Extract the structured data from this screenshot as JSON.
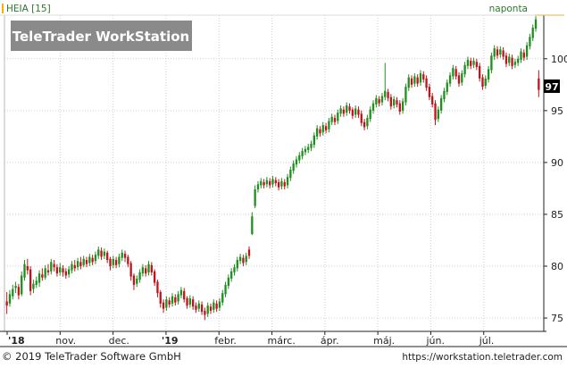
{
  "header": {
    "symbol_label": "HEIA [15]",
    "period_label": "naponta",
    "watermark": "TeleTrader WorkStation"
  },
  "footer": {
    "copyright": "© 2019 TeleTrader Software GmbH",
    "url": "https://workstation.teletrader.com"
  },
  "colors": {
    "up": "#1f8f1f",
    "down": "#c0141c",
    "grid": "#cfcfcf",
    "axis_text": "#222222",
    "label_green": "#2a7a2a",
    "last_price_box": "#000000",
    "watermark_bg": "#8a8a8a"
  },
  "chart_data": {
    "type": "candlestick",
    "title": "HEIA [15]",
    "period": "naponta",
    "x_tick_labels": [
      "'18",
      "nov.",
      "dec.",
      "'19",
      "febr.",
      "márc.",
      "ápr.",
      "máj.",
      "jún.",
      "júl."
    ],
    "y_ticks": [
      75,
      80,
      85,
      90,
      95,
      100
    ],
    "ylim": [
      73.8,
      104.2
    ],
    "last_price_label": "97",
    "grid": true,
    "candles": [
      {
        "o": 76.6,
        "c": 76.2,
        "h": 77.5,
        "l": 75.4
      },
      {
        "o": 76.4,
        "c": 77.3,
        "h": 77.7,
        "l": 76.1
      },
      {
        "o": 77.1,
        "c": 77.8,
        "h": 78.2,
        "l": 76.8
      },
      {
        "o": 77.9,
        "c": 78.1,
        "h": 78.5,
        "l": 77.4
      },
      {
        "o": 78.0,
        "c": 77.2,
        "h": 78.3,
        "l": 76.8
      },
      {
        "o": 77.3,
        "c": 79.1,
        "h": 79.5,
        "l": 77.1
      },
      {
        "o": 78.9,
        "c": 80.2,
        "h": 80.6,
        "l": 78.6
      },
      {
        "o": 80.0,
        "c": 79.6,
        "h": 80.7,
        "l": 79.2
      },
      {
        "o": 79.7,
        "c": 77.6,
        "h": 80.0,
        "l": 77.2
      },
      {
        "o": 77.8,
        "c": 78.3,
        "h": 78.7,
        "l": 77.4
      },
      {
        "o": 78.2,
        "c": 78.6,
        "h": 79.0,
        "l": 77.9
      },
      {
        "o": 78.4,
        "c": 79.3,
        "h": 79.6,
        "l": 78.0
      },
      {
        "o": 79.2,
        "c": 78.9,
        "h": 79.8,
        "l": 78.6
      },
      {
        "o": 78.9,
        "c": 79.8,
        "h": 80.1,
        "l": 78.7
      },
      {
        "o": 79.6,
        "c": 79.4,
        "h": 80.2,
        "l": 79.1
      },
      {
        "o": 79.5,
        "c": 80.4,
        "h": 80.7,
        "l": 79.2
      },
      {
        "o": 80.2,
        "c": 79.9,
        "h": 80.6,
        "l": 79.5
      },
      {
        "o": 79.9,
        "c": 79.3,
        "h": 80.2,
        "l": 79.0
      },
      {
        "o": 79.4,
        "c": 79.9,
        "h": 80.3,
        "l": 79.1
      },
      {
        "o": 79.8,
        "c": 79.4,
        "h": 80.1,
        "l": 79.0
      },
      {
        "o": 79.5,
        "c": 79.1,
        "h": 79.8,
        "l": 78.8
      },
      {
        "o": 79.2,
        "c": 79.7,
        "h": 80.0,
        "l": 78.9
      },
      {
        "o": 79.6,
        "c": 80.2,
        "h": 80.5,
        "l": 79.3
      },
      {
        "o": 80.1,
        "c": 79.8,
        "h": 80.6,
        "l": 79.5
      },
      {
        "o": 79.9,
        "c": 80.5,
        "h": 80.8,
        "l": 79.6
      },
      {
        "o": 80.4,
        "c": 80.0,
        "h": 80.9,
        "l": 79.7
      },
      {
        "o": 80.1,
        "c": 80.7,
        "h": 81.0,
        "l": 79.9
      },
      {
        "o": 80.6,
        "c": 80.2,
        "h": 80.9,
        "l": 79.9
      },
      {
        "o": 80.3,
        "c": 80.9,
        "h": 81.2,
        "l": 80.0
      },
      {
        "o": 80.8,
        "c": 80.4,
        "h": 81.1,
        "l": 80.1
      },
      {
        "o": 80.5,
        "c": 81.1,
        "h": 81.4,
        "l": 80.2
      },
      {
        "o": 81.0,
        "c": 81.6,
        "h": 81.9,
        "l": 80.7
      },
      {
        "o": 81.5,
        "c": 80.9,
        "h": 81.8,
        "l": 80.6
      },
      {
        "o": 81.0,
        "c": 81.4,
        "h": 81.7,
        "l": 80.7
      },
      {
        "o": 81.3,
        "c": 80.6,
        "h": 81.5,
        "l": 80.3
      },
      {
        "o": 80.7,
        "c": 80.0,
        "h": 80.9,
        "l": 79.6
      },
      {
        "o": 80.1,
        "c": 80.7,
        "h": 81.0,
        "l": 79.8
      },
      {
        "o": 80.6,
        "c": 80.1,
        "h": 80.9,
        "l": 79.8
      },
      {
        "o": 80.2,
        "c": 80.9,
        "h": 81.2,
        "l": 79.9
      },
      {
        "o": 80.8,
        "c": 81.3,
        "h": 81.6,
        "l": 80.5
      },
      {
        "o": 81.2,
        "c": 80.8,
        "h": 81.5,
        "l": 80.4
      },
      {
        "o": 80.9,
        "c": 80.2,
        "h": 81.1,
        "l": 79.9
      },
      {
        "o": 80.3,
        "c": 79.0,
        "h": 80.5,
        "l": 78.6
      },
      {
        "o": 79.1,
        "c": 78.2,
        "h": 79.3,
        "l": 77.7
      },
      {
        "o": 78.3,
        "c": 78.8,
        "h": 79.1,
        "l": 78.0
      },
      {
        "o": 78.7,
        "c": 79.4,
        "h": 79.7,
        "l": 78.4
      },
      {
        "o": 79.3,
        "c": 79.9,
        "h": 80.2,
        "l": 79.0
      },
      {
        "o": 79.8,
        "c": 79.3,
        "h": 80.1,
        "l": 79.0
      },
      {
        "o": 79.4,
        "c": 80.2,
        "h": 80.5,
        "l": 79.1
      },
      {
        "o": 80.1,
        "c": 79.4,
        "h": 80.4,
        "l": 79.1
      },
      {
        "o": 79.5,
        "c": 78.4,
        "h": 79.7,
        "l": 78.1
      },
      {
        "o": 78.5,
        "c": 77.4,
        "h": 78.7,
        "l": 77.0
      },
      {
        "o": 77.5,
        "c": 76.4,
        "h": 77.7,
        "l": 76.0
      },
      {
        "o": 76.5,
        "c": 75.9,
        "h": 76.8,
        "l": 75.5
      },
      {
        "o": 76.0,
        "c": 76.8,
        "h": 77.1,
        "l": 75.7
      },
      {
        "o": 76.7,
        "c": 76.3,
        "h": 77.0,
        "l": 76.0
      },
      {
        "o": 76.4,
        "c": 77.1,
        "h": 77.4,
        "l": 76.1
      },
      {
        "o": 77.0,
        "c": 76.5,
        "h": 77.3,
        "l": 76.2
      },
      {
        "o": 76.6,
        "c": 77.3,
        "h": 77.6,
        "l": 76.3
      },
      {
        "o": 77.2,
        "c": 77.7,
        "h": 78.0,
        "l": 76.9
      },
      {
        "o": 77.6,
        "c": 76.8,
        "h": 77.9,
        "l": 76.5
      },
      {
        "o": 76.9,
        "c": 76.2,
        "h": 77.1,
        "l": 75.9
      },
      {
        "o": 76.3,
        "c": 76.9,
        "h": 77.2,
        "l": 76.0
      },
      {
        "o": 76.8,
        "c": 76.1,
        "h": 77.1,
        "l": 75.8
      },
      {
        "o": 76.2,
        "c": 75.8,
        "h": 76.5,
        "l": 75.5
      },
      {
        "o": 75.9,
        "c": 76.4,
        "h": 76.7,
        "l": 75.6
      },
      {
        "o": 76.3,
        "c": 75.6,
        "h": 76.6,
        "l": 75.3
      },
      {
        "o": 75.7,
        "c": 75.3,
        "h": 76.0,
        "l": 74.8
      },
      {
        "o": 75.4,
        "c": 76.2,
        "h": 76.5,
        "l": 75.1
      },
      {
        "o": 76.1,
        "c": 75.7,
        "h": 76.4,
        "l": 75.4
      },
      {
        "o": 75.8,
        "c": 76.5,
        "h": 76.8,
        "l": 75.5
      },
      {
        "o": 76.4,
        "c": 75.9,
        "h": 76.7,
        "l": 75.6
      },
      {
        "o": 76.0,
        "c": 76.6,
        "h": 76.9,
        "l": 75.7
      },
      {
        "o": 76.5,
        "c": 77.4,
        "h": 77.7,
        "l": 76.2
      },
      {
        "o": 77.3,
        "c": 78.2,
        "h": 78.5,
        "l": 77.0
      },
      {
        "o": 78.1,
        "c": 78.9,
        "h": 79.2,
        "l": 77.8
      },
      {
        "o": 78.8,
        "c": 79.5,
        "h": 79.8,
        "l": 78.5
      },
      {
        "o": 79.4,
        "c": 79.9,
        "h": 80.2,
        "l": 79.1
      },
      {
        "o": 79.8,
        "c": 80.6,
        "h": 80.9,
        "l": 79.5
      },
      {
        "o": 80.5,
        "c": 80.9,
        "h": 81.2,
        "l": 80.2
      },
      {
        "o": 80.8,
        "c": 80.3,
        "h": 81.1,
        "l": 80.0
      },
      {
        "o": 80.4,
        "c": 81.0,
        "h": 81.3,
        "l": 80.1
      },
      {
        "o": 81.6,
        "c": 81.0,
        "h": 81.9,
        "l": 80.7
      },
      {
        "o": 83.1,
        "c": 84.8,
        "h": 85.2,
        "l": 83.0
      },
      {
        "o": 85.8,
        "c": 87.4,
        "h": 87.8,
        "l": 85.6
      },
      {
        "o": 87.4,
        "c": 87.9,
        "h": 88.2,
        "l": 87.1
      },
      {
        "o": 87.8,
        "c": 88.2,
        "h": 88.5,
        "l": 87.5
      },
      {
        "o": 88.1,
        "c": 87.8,
        "h": 88.4,
        "l": 87.5
      },
      {
        "o": 87.9,
        "c": 88.3,
        "h": 88.6,
        "l": 87.6
      },
      {
        "o": 88.2,
        "c": 87.8,
        "h": 88.5,
        "l": 87.5
      },
      {
        "o": 87.9,
        "c": 88.4,
        "h": 88.7,
        "l": 87.6
      },
      {
        "o": 88.3,
        "c": 88.0,
        "h": 88.6,
        "l": 87.7
      },
      {
        "o": 88.1,
        "c": 87.6,
        "h": 88.4,
        "l": 87.3
      },
      {
        "o": 87.7,
        "c": 88.2,
        "h": 88.5,
        "l": 87.4
      },
      {
        "o": 88.1,
        "c": 87.7,
        "h": 88.4,
        "l": 87.4
      },
      {
        "o": 87.8,
        "c": 88.6,
        "h": 88.9,
        "l": 87.5
      },
      {
        "o": 88.5,
        "c": 89.3,
        "h": 89.6,
        "l": 88.2
      },
      {
        "o": 89.2,
        "c": 89.9,
        "h": 90.2,
        "l": 88.9
      },
      {
        "o": 89.8,
        "c": 90.3,
        "h": 90.6,
        "l": 89.5
      },
      {
        "o": 90.2,
        "c": 90.7,
        "h": 91.0,
        "l": 89.9
      },
      {
        "o": 90.6,
        "c": 91.1,
        "h": 91.4,
        "l": 90.3
      },
      {
        "o": 91.0,
        "c": 91.3,
        "h": 91.6,
        "l": 90.7
      },
      {
        "o": 91.2,
        "c": 91.5,
        "h": 91.8,
        "l": 90.9
      },
      {
        "o": 91.4,
        "c": 91.8,
        "h": 92.1,
        "l": 91.1
      },
      {
        "o": 91.7,
        "c": 92.6,
        "h": 92.9,
        "l": 91.4
      },
      {
        "o": 92.5,
        "c": 93.3,
        "h": 93.6,
        "l": 92.2
      },
      {
        "o": 93.2,
        "c": 92.8,
        "h": 93.5,
        "l": 92.5
      },
      {
        "o": 92.9,
        "c": 93.6,
        "h": 93.9,
        "l": 92.6
      },
      {
        "o": 93.5,
        "c": 93.1,
        "h": 93.8,
        "l": 92.8
      },
      {
        "o": 93.2,
        "c": 94.0,
        "h": 94.3,
        "l": 92.9
      },
      {
        "o": 93.9,
        "c": 94.4,
        "h": 94.7,
        "l": 93.6
      },
      {
        "o": 94.3,
        "c": 93.9,
        "h": 94.6,
        "l": 93.6
      },
      {
        "o": 94.0,
        "c": 94.8,
        "h": 95.1,
        "l": 93.7
      },
      {
        "o": 94.7,
        "c": 95.2,
        "h": 95.5,
        "l": 94.4
      },
      {
        "o": 95.1,
        "c": 94.7,
        "h": 95.4,
        "l": 94.4
      },
      {
        "o": 94.8,
        "c": 95.5,
        "h": 95.8,
        "l": 94.5
      },
      {
        "o": 95.4,
        "c": 95.0,
        "h": 95.7,
        "l": 94.7
      },
      {
        "o": 95.1,
        "c": 94.5,
        "h": 95.3,
        "l": 94.2
      },
      {
        "o": 94.6,
        "c": 95.2,
        "h": 95.5,
        "l": 94.3
      },
      {
        "o": 95.1,
        "c": 94.6,
        "h": 95.4,
        "l": 94.3
      },
      {
        "o": 94.7,
        "c": 93.8,
        "h": 95.0,
        "l": 93.5
      },
      {
        "o": 93.9,
        "c": 93.4,
        "h": 94.2,
        "l": 93.1
      },
      {
        "o": 93.5,
        "c": 94.3,
        "h": 94.6,
        "l": 93.2
      },
      {
        "o": 94.2,
        "c": 95.1,
        "h": 95.4,
        "l": 93.9
      },
      {
        "o": 95.0,
        "c": 95.7,
        "h": 96.0,
        "l": 94.7
      },
      {
        "o": 95.6,
        "c": 96.2,
        "h": 96.5,
        "l": 95.3
      },
      {
        "o": 96.1,
        "c": 95.7,
        "h": 96.4,
        "l": 95.4
      },
      {
        "o": 95.8,
        "c": 96.4,
        "h": 96.7,
        "l": 95.5
      },
      {
        "o": 96.3,
        "c": 96.9,
        "h": 99.6,
        "l": 96.0
      },
      {
        "o": 96.8,
        "c": 96.2,
        "h": 97.1,
        "l": 95.9
      },
      {
        "o": 96.3,
        "c": 95.4,
        "h": 96.6,
        "l": 95.1
      },
      {
        "o": 95.5,
        "c": 96.1,
        "h": 96.4,
        "l": 95.2
      },
      {
        "o": 96.0,
        "c": 95.6,
        "h": 96.3,
        "l": 95.3
      },
      {
        "o": 95.7,
        "c": 94.9,
        "h": 96.0,
        "l": 94.6
      },
      {
        "o": 95.0,
        "c": 95.9,
        "h": 96.2,
        "l": 94.7
      },
      {
        "o": 95.8,
        "c": 97.3,
        "h": 97.6,
        "l": 95.5
      },
      {
        "o": 97.2,
        "c": 98.2,
        "h": 98.5,
        "l": 96.9
      },
      {
        "o": 98.1,
        "c": 97.5,
        "h": 98.4,
        "l": 97.2
      },
      {
        "o": 97.6,
        "c": 98.3,
        "h": 98.6,
        "l": 97.3
      },
      {
        "o": 98.2,
        "c": 97.6,
        "h": 98.5,
        "l": 97.3
      },
      {
        "o": 97.7,
        "c": 98.6,
        "h": 98.9,
        "l": 97.4
      },
      {
        "o": 98.5,
        "c": 98.0,
        "h": 98.8,
        "l": 97.7
      },
      {
        "o": 98.1,
        "c": 97.2,
        "h": 98.4,
        "l": 96.9
      },
      {
        "o": 97.3,
        "c": 96.3,
        "h": 97.6,
        "l": 96.0
      },
      {
        "o": 96.4,
        "c": 95.6,
        "h": 96.7,
        "l": 95.3
      },
      {
        "o": 95.7,
        "c": 94.1,
        "h": 96.0,
        "l": 93.6
      },
      {
        "o": 94.2,
        "c": 95.1,
        "h": 95.4,
        "l": 93.9
      },
      {
        "o": 95.0,
        "c": 96.2,
        "h": 96.5,
        "l": 94.7
      },
      {
        "o": 96.1,
        "c": 96.9,
        "h": 97.2,
        "l": 95.8
      },
      {
        "o": 96.8,
        "c": 97.7,
        "h": 98.0,
        "l": 96.5
      },
      {
        "o": 97.6,
        "c": 98.4,
        "h": 98.7,
        "l": 97.3
      },
      {
        "o": 98.3,
        "c": 99.1,
        "h": 99.4,
        "l": 98.0
      },
      {
        "o": 99.0,
        "c": 98.3,
        "h": 99.3,
        "l": 98.0
      },
      {
        "o": 98.4,
        "c": 97.6,
        "h": 98.7,
        "l": 97.3
      },
      {
        "o": 97.7,
        "c": 98.6,
        "h": 98.9,
        "l": 97.4
      },
      {
        "o": 98.5,
        "c": 99.4,
        "h": 99.7,
        "l": 98.2
      },
      {
        "o": 99.3,
        "c": 99.9,
        "h": 100.2,
        "l": 99.0
      },
      {
        "o": 99.8,
        "c": 99.3,
        "h": 100.1,
        "l": 99.0
      },
      {
        "o": 99.4,
        "c": 99.8,
        "h": 100.1,
        "l": 99.1
      },
      {
        "o": 99.7,
        "c": 99.2,
        "h": 100.0,
        "l": 98.9
      },
      {
        "o": 99.3,
        "c": 98.1,
        "h": 99.6,
        "l": 97.8
      },
      {
        "o": 98.2,
        "c": 97.3,
        "h": 98.5,
        "l": 97.0
      },
      {
        "o": 97.4,
        "c": 98.1,
        "h": 98.4,
        "l": 97.1
      },
      {
        "o": 98.0,
        "c": 99.0,
        "h": 99.3,
        "l": 97.7
      },
      {
        "o": 98.9,
        "c": 100.3,
        "h": 100.6,
        "l": 98.6
      },
      {
        "o": 100.2,
        "c": 101.0,
        "h": 101.3,
        "l": 99.9
      },
      {
        "o": 100.9,
        "c": 100.3,
        "h": 101.2,
        "l": 100.0
      },
      {
        "o": 100.4,
        "c": 100.9,
        "h": 101.2,
        "l": 100.1
      },
      {
        "o": 100.8,
        "c": 100.2,
        "h": 101.1,
        "l": 99.9
      },
      {
        "o": 100.3,
        "c": 99.5,
        "h": 100.6,
        "l": 99.2
      },
      {
        "o": 99.6,
        "c": 100.2,
        "h": 100.5,
        "l": 99.3
      },
      {
        "o": 100.1,
        "c": 99.3,
        "h": 100.4,
        "l": 99.0
      },
      {
        "o": 99.4,
        "c": 99.7,
        "h": 100.0,
        "l": 99.1
      },
      {
        "o": 99.6,
        "c": 100.0,
        "h": 100.3,
        "l": 99.3
      },
      {
        "o": 99.9,
        "c": 100.7,
        "h": 101.0,
        "l": 99.6
      },
      {
        "o": 100.6,
        "c": 100.1,
        "h": 100.9,
        "l": 99.8
      },
      {
        "o": 100.2,
        "c": 101.3,
        "h": 101.6,
        "l": 99.9
      },
      {
        "o": 101.2,
        "c": 102.1,
        "h": 102.4,
        "l": 100.9
      },
      {
        "o": 102.0,
        "c": 103.0,
        "h": 103.3,
        "l": 101.7
      },
      {
        "o": 102.9,
        "c": 103.8,
        "h": 104.1,
        "l": 102.6
      },
      {
        "o": 98.1,
        "c": 97.0,
        "h": 98.9,
        "l": 96.3
      }
    ]
  }
}
